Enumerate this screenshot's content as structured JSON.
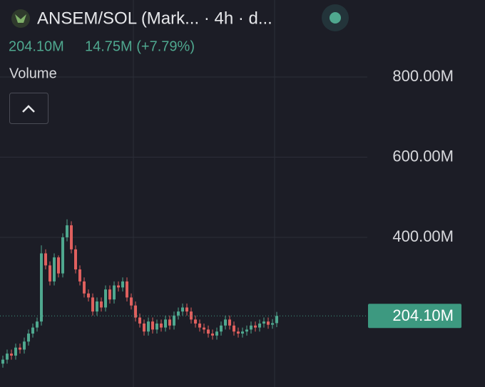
{
  "chart_data": {
    "type": "candlestick",
    "title": "ANSEM/SOL (Mark... · 4h · d...",
    "legend_values": [
      "204.10M",
      "14.75M (+7.79%)"
    ],
    "pane_label": "Volume",
    "open": [
      85,
      95,
      110,
      105,
      125,
      120,
      140,
      160,
      175,
      190,
      360,
      330,
      290,
      350,
      310,
      400,
      430,
      370,
      320,
      290,
      260,
      250,
      215,
      240,
      225,
      270,
      245,
      280,
      275,
      290,
      250,
      230,
      200,
      185,
      165,
      190,
      170,
      185,
      175,
      195,
      180,
      205,
      215,
      225,
      215,
      195,
      185,
      175,
      170,
      160,
      155,
      165,
      180,
      195,
      180,
      165,
      160,
      165,
      170,
      180,
      175,
      185,
      190,
      182,
      186
    ],
    "high": [
      105,
      120,
      120,
      135,
      135,
      150,
      170,
      185,
      200,
      380,
      370,
      340,
      360,
      355,
      410,
      445,
      440,
      380,
      330,
      300,
      270,
      260,
      250,
      250,
      280,
      280,
      290,
      290,
      300,
      300,
      260,
      240,
      210,
      195,
      200,
      200,
      195,
      195,
      205,
      205,
      215,
      225,
      235,
      235,
      225,
      205,
      195,
      185,
      180,
      170,
      175,
      190,
      205,
      205,
      190,
      175,
      175,
      180,
      190,
      190,
      195,
      200,
      200,
      196,
      214
    ],
    "low": [
      75,
      85,
      95,
      95,
      110,
      110,
      130,
      150,
      165,
      180,
      320,
      280,
      280,
      300,
      300,
      390,
      360,
      310,
      280,
      250,
      240,
      205,
      205,
      215,
      215,
      235,
      235,
      265,
      265,
      240,
      220,
      190,
      175,
      155,
      155,
      160,
      160,
      165,
      165,
      170,
      170,
      195,
      205,
      205,
      185,
      175,
      165,
      160,
      150,
      145,
      145,
      155,
      170,
      170,
      155,
      150,
      150,
      155,
      160,
      165,
      165,
      175,
      172,
      172,
      176
    ],
    "close": [
      95,
      110,
      105,
      125,
      120,
      140,
      160,
      175,
      190,
      360,
      330,
      290,
      350,
      310,
      400,
      430,
      370,
      320,
      290,
      260,
      250,
      215,
      240,
      225,
      270,
      245,
      280,
      275,
      290,
      250,
      230,
      200,
      185,
      165,
      190,
      170,
      185,
      175,
      195,
      180,
      205,
      215,
      225,
      215,
      195,
      185,
      175,
      170,
      160,
      155,
      165,
      180,
      195,
      180,
      165,
      160,
      165,
      170,
      180,
      175,
      185,
      190,
      182,
      186,
      204.1
    ],
    "up_color": "#4fa88f",
    "down_color": "#e0605e",
    "ylim": [
      26.7,
      992
    ],
    "yticks": [
      {
        "value": 400,
        "label": "400.00M"
      },
      {
        "value": 600,
        "label": "600.00M"
      },
      {
        "value": 800,
        "label": "800.00M"
      }
    ],
    "grid": true,
    "current_price": {
      "value": 204.1,
      "label": "204.10M"
    },
    "price_label_color": "#3d9980"
  }
}
